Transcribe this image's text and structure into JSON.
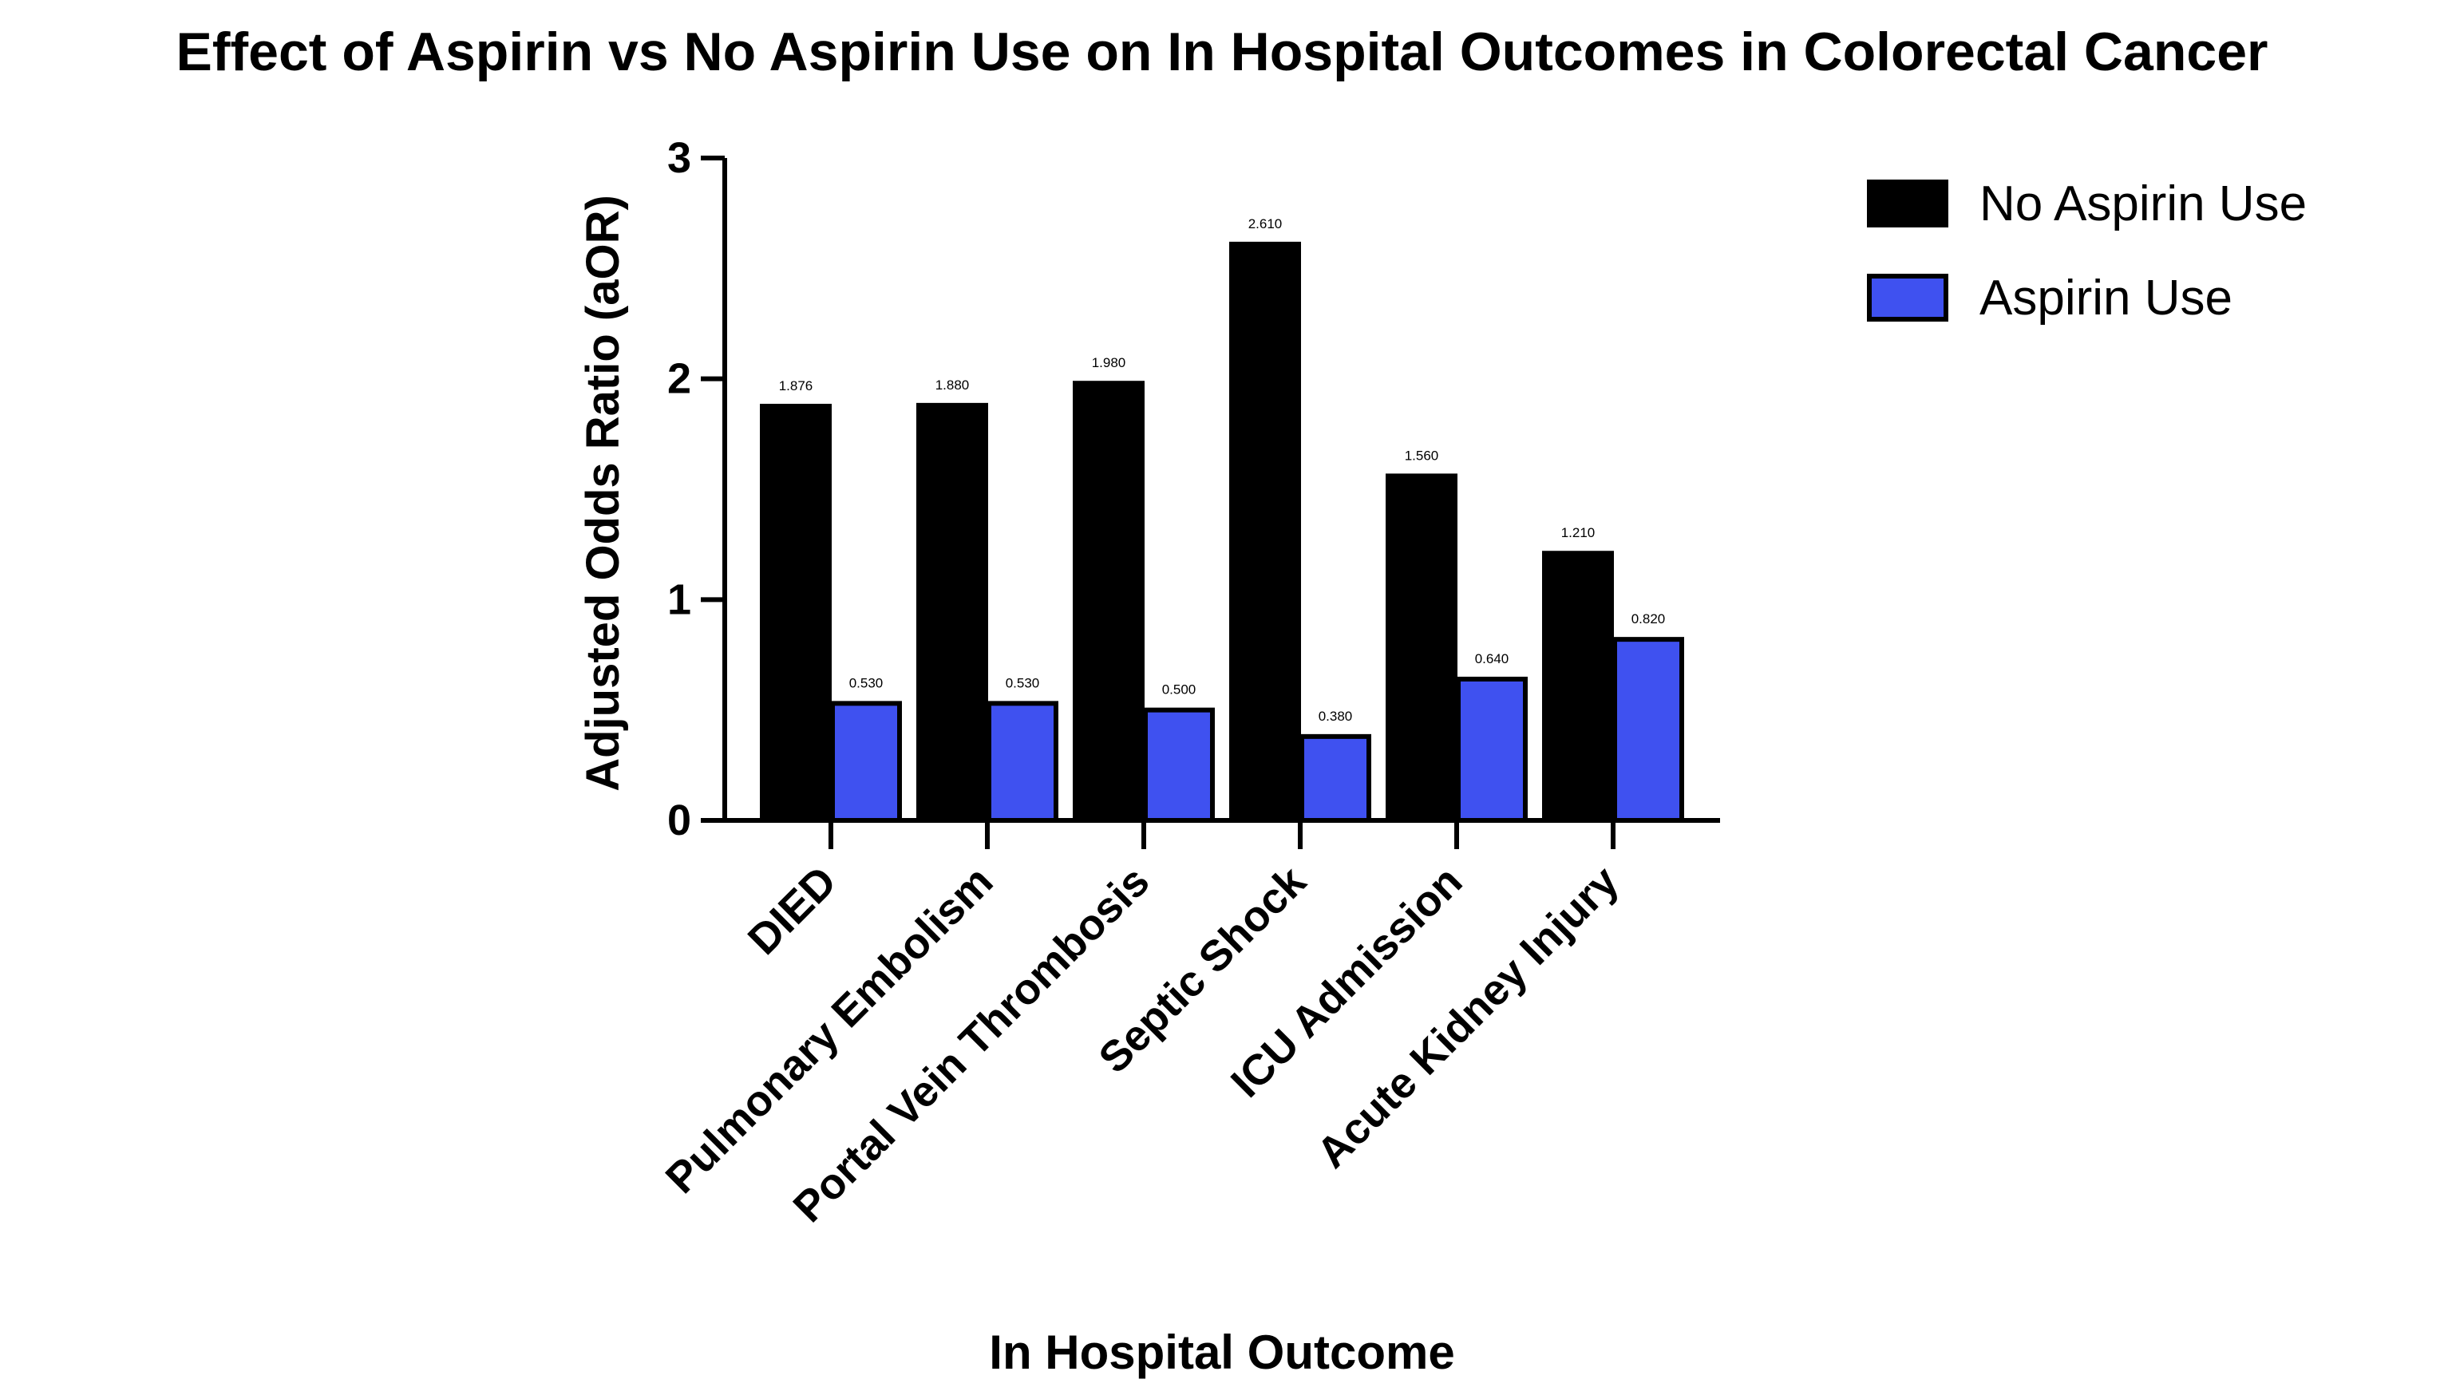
{
  "chart_data": {
    "type": "bar",
    "title": "Effect of Aspirin vs No Aspirin Use on In Hospital Outcomes in Colorectal Cancer",
    "xlabel": "In Hospital Outcome",
    "ylabel": "Adjusted Odds Ratio (aOR)",
    "ylim": [
      0,
      3
    ],
    "yticks": [
      0,
      1,
      2,
      3
    ],
    "grid": false,
    "legend_position": "top-right",
    "categories": [
      "DIED",
      "Pulmonary Embolism",
      "Portal Vein Thrombosis",
      "Septic Shock",
      "ICU Admission",
      "Acute Kidney Injury"
    ],
    "series": [
      {
        "name": "No Aspirin Use",
        "color": "#000000",
        "values": [
          1.876,
          1.88,
          1.98,
          2.61,
          1.56,
          1.21
        ],
        "labels": [
          "1.876",
          "1.880",
          "1.980",
          "2.610",
          "1.560",
          "1.210"
        ]
      },
      {
        "name": "Aspirin Use",
        "color": "#3f51f0",
        "values": [
          0.53,
          0.53,
          0.5,
          0.38,
          0.64,
          0.82
        ],
        "labels": [
          "0.530",
          "0.530",
          "0.500",
          "0.380",
          "0.640",
          "0.820"
        ]
      }
    ]
  }
}
